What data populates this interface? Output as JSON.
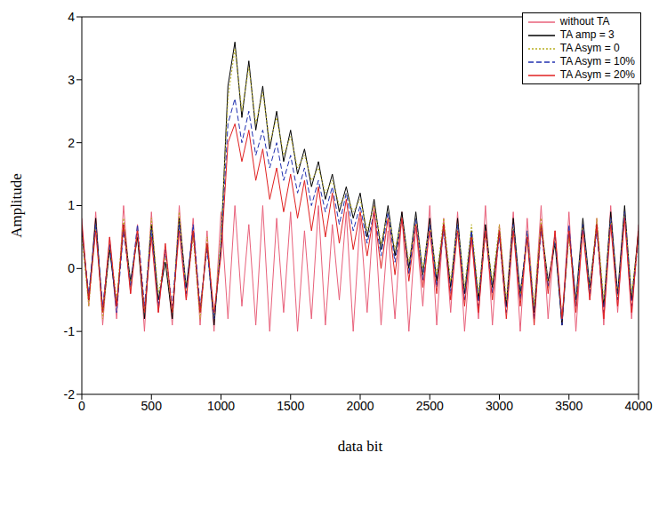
{
  "chart_data": {
    "type": "line",
    "x_label": "data bit",
    "y_label": "Amplitude",
    "x": [
      0,
      50,
      100,
      150,
      200,
      250,
      300,
      350,
      400,
      450,
      500,
      550,
      600,
      650,
      700,
      750,
      800,
      850,
      900,
      950,
      1000,
      1050,
      1100,
      1150,
      1200,
      1250,
      1300,
      1350,
      1400,
      1450,
      1500,
      1550,
      1600,
      1650,
      1700,
      1750,
      1800,
      1850,
      1900,
      1950,
      2000,
      2050,
      2100,
      2150,
      2200,
      2250,
      2300,
      2350,
      2400,
      2450,
      2500,
      2550,
      2600,
      2650,
      2700,
      2750,
      2800,
      2850,
      2900,
      2950,
      3000,
      3050,
      3100,
      3150,
      3200,
      3250,
      3300,
      3350,
      3400,
      3450,
      3500,
      3550,
      3600,
      3650,
      3700,
      3750,
      3800,
      3850,
      3900,
      3950,
      4000
    ],
    "xlim": [
      0,
      4000
    ],
    "xticks": [
      0,
      500,
      1000,
      1500,
      2000,
      2500,
      3000,
      3500,
      4000
    ],
    "ylim": [
      -2,
      4
    ],
    "yticks": [
      -2,
      -1,
      0,
      1,
      2,
      3,
      4
    ],
    "grid": false,
    "legend": "upper right",
    "series": [
      {
        "name": "without TA",
        "color": "#e8607a",
        "line_style": "solid",
        "values": [
          0.8,
          -0.6,
          0.9,
          -0.9,
          0.5,
          -0.8,
          1,
          -0.4,
          0.7,
          -1,
          0.9,
          -0.7,
          0.3,
          -0.9,
          1,
          -0.5,
          0.8,
          -0.9,
          0.6,
          -1,
          0.9,
          -0.8,
          1,
          -0.6,
          0.7,
          -0.9,
          1,
          -1,
          0.8,
          -0.7,
          0.9,
          -1,
          0.6,
          -0.8,
          1,
          -0.9,
          0.7,
          -0.5,
          0.9,
          -1,
          0.8,
          -0.7,
          1,
          -0.9,
          0.6,
          -0.8,
          0.9,
          -1,
          0.7,
          -0.6,
          1,
          -0.9,
          0.8,
          -0.7,
          0.9,
          -1,
          0.5,
          -0.8,
          1,
          -0.9,
          0.7,
          -0.6,
          0.9,
          -1,
          0.8,
          -0.7,
          1,
          -0.8,
          0.6,
          -0.9,
          0.9,
          -1,
          0.7,
          -0.5,
          0.8,
          -0.9,
          1,
          -0.7,
          0.9,
          -0.8,
          0.7
        ]
      },
      {
        "name": "TA amp = 3",
        "color": "#000000",
        "line_style": "solid",
        "values": [
          0.6,
          -0.5,
          0.8,
          -0.7,
          0.3,
          -0.6,
          0.7,
          -0.2,
          0.5,
          -0.8,
          0.7,
          -0.5,
          0.1,
          -0.8,
          0.8,
          -0.3,
          0.6,
          -0.7,
          0.4,
          -0.9,
          0.4,
          2.9,
          3.6,
          2.4,
          3.3,
          2.2,
          2.9,
          1.9,
          2.5,
          1.7,
          2.2,
          1.5,
          1.9,
          1.3,
          1.7,
          1.1,
          1.5,
          0.9,
          1.3,
          0.8,
          1.2,
          0.5,
          1.1,
          0.3,
          1.0,
          0.2,
          0.9,
          0.0,
          0.9,
          -0.1,
          0.8,
          -0.2,
          0.7,
          -0.3,
          0.8,
          -0.4,
          0.6,
          -0.5,
          0.7,
          -0.3,
          0.6,
          -0.6,
          0.8,
          -0.4,
          0.5,
          -0.7,
          0.7,
          -0.2,
          0.4,
          -0.9,
          0.6,
          -0.5,
          0.8,
          -0.3,
          0.7,
          -0.6,
          0.9,
          -0.4,
          1.0,
          -0.5,
          0.6
        ]
      },
      {
        "name": "TA Asym = 0",
        "color": "#b8b020",
        "line_style": "dotted",
        "values": [
          0.5,
          -0.6,
          0.7,
          -0.8,
          0.4,
          -0.5,
          0.8,
          -0.3,
          0.6,
          -0.7,
          0.8,
          -0.4,
          0.2,
          -0.7,
          0.9,
          -0.4,
          0.5,
          -0.8,
          0.5,
          -0.8,
          0.5,
          2.7,
          3.5,
          2.5,
          3.2,
          2.3,
          2.8,
          2.0,
          2.4,
          1.8,
          2.1,
          1.6,
          1.8,
          1.4,
          1.6,
          1.2,
          1.4,
          1.0,
          1.2,
          0.9,
          1.1,
          0.6,
          1.0,
          0.4,
          0.9,
          0.3,
          0.8,
          0.1,
          0.8,
          0.0,
          0.7,
          -0.1,
          0.8,
          -0.2,
          0.7,
          -0.3,
          0.7,
          -0.4,
          0.6,
          -0.2,
          0.7,
          -0.5,
          0.7,
          -0.5,
          0.6,
          -0.6,
          0.8,
          -0.3,
          0.5,
          -0.8,
          0.5,
          -0.6,
          0.7,
          -0.4,
          0.8,
          -0.5,
          0.8,
          -0.5,
          0.9,
          -0.4,
          0.5
        ]
      },
      {
        "name": "TA Asym = 10%",
        "color": "#2030b0",
        "line_style": "dashed",
        "values": [
          0.6,
          -0.4,
          0.7,
          -0.6,
          0.4,
          -0.7,
          0.6,
          -0.3,
          0.7,
          -0.6,
          0.6,
          -0.6,
          0.3,
          -0.6,
          0.7,
          -0.4,
          0.7,
          -0.6,
          0.3,
          -0.8,
          0.3,
          2.3,
          2.7,
          2.0,
          2.5,
          1.8,
          2.2,
          1.6,
          2.0,
          1.4,
          1.8,
          1.2,
          1.6,
          1.0,
          1.4,
          0.9,
          1.3,
          0.7,
          1.2,
          0.6,
          1.0,
          0.4,
          0.9,
          0.2,
          0.9,
          0.1,
          0.8,
          -0.1,
          0.8,
          -0.2,
          0.7,
          -0.3,
          0.6,
          -0.4,
          0.7,
          -0.5,
          0.6,
          -0.6,
          0.6,
          -0.4,
          0.5,
          -0.7,
          0.7,
          -0.5,
          0.6,
          -0.8,
          0.6,
          -0.3,
          0.5,
          -0.9,
          0.7,
          -0.6,
          0.7,
          -0.4,
          0.6,
          -0.7,
          0.8,
          -0.5,
          0.9,
          -0.6,
          0.5
        ]
      },
      {
        "name": "TA Asym = 20%",
        "color": "#e02020",
        "line_style": "solid",
        "values": [
          0.7,
          -0.5,
          0.6,
          -0.7,
          0.5,
          -0.6,
          0.7,
          -0.4,
          0.6,
          -0.7,
          0.5,
          -0.7,
          0.4,
          -0.7,
          0.6,
          -0.5,
          0.6,
          -0.7,
          0.4,
          -0.7,
          0.2,
          2.0,
          2.3,
          1.7,
          2.2,
          1.4,
          1.9,
          1.1,
          1.6,
          0.9,
          1.5,
          0.8,
          1.4,
          0.6,
          1.3,
          0.5,
          1.2,
          0.4,
          1.1,
          0.3,
          0.9,
          0.2,
          0.9,
          0.0,
          0.8,
          -0.1,
          0.8,
          -0.2,
          0.7,
          -0.3,
          0.6,
          -0.4,
          0.7,
          -0.5,
          0.6,
          -0.6,
          0.5,
          -0.7,
          0.6,
          -0.5,
          0.6,
          -0.8,
          0.6,
          -0.6,
          0.5,
          -0.9,
          0.7,
          -0.4,
          0.6,
          -0.8,
          0.6,
          -0.7,
          0.6,
          -0.5,
          0.7,
          -0.8,
          0.7,
          -0.6,
          0.8,
          -0.7,
          0.6
        ]
      }
    ]
  }
}
